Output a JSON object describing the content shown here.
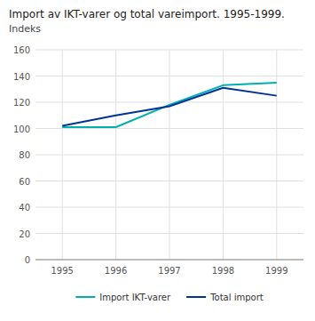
{
  "chart_data": {
    "type": "line",
    "title": "Import av IKT-varer og total vareimport. 1995-1999.",
    "subtitle": "Indeks",
    "x": [
      1995,
      1996,
      1997,
      1998,
      1999
    ],
    "series": [
      {
        "name": "Import IKT-varer",
        "color": "#00b0b0",
        "values": [
          101,
          101,
          118,
          133,
          135
        ]
      },
      {
        "name": "Total import",
        "color": "#003399",
        "values": [
          102,
          110,
          117,
          131,
          125
        ]
      }
    ],
    "xlim": [
      1994.5,
      1999.5
    ],
    "xticks": [
      1995,
      1996,
      1997,
      1998,
      1999
    ],
    "ylim": [
      0,
      160
    ],
    "yticks": [
      0,
      20,
      40,
      60,
      80,
      100,
      120,
      140,
      160
    ],
    "grid": true,
    "legend": "bottom"
  }
}
